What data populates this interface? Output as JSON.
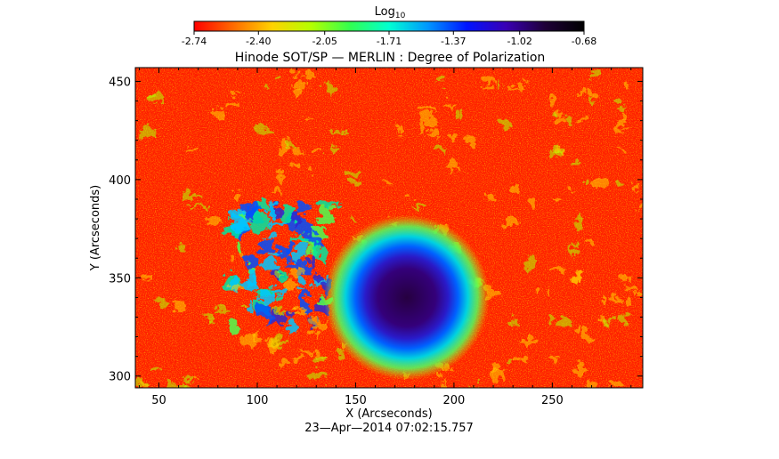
{
  "chart_data": {
    "type": "heatmap",
    "title": "Hinode SOT/SP — MERLIN : Degree of Polarization",
    "xlabel": "X (Arcseconds)",
    "ylabel": "Y (Arcseconds)",
    "footer": "23—Apr—2014 07:02:15.757",
    "xlim": [
      38,
      296
    ],
    "ylim": [
      294,
      457
    ],
    "x_ticks": [
      50,
      100,
      150,
      200,
      250
    ],
    "y_ticks": [
      300,
      350,
      400,
      450
    ],
    "colorbar": {
      "label_base": "Log",
      "label_sub": "10",
      "range": [
        -2.74,
        -0.68
      ],
      "ticks": [
        "-2.74",
        "-2.40",
        "-2.05",
        "-1.71",
        "-1.37",
        "-1.02",
        "-0.68"
      ],
      "colors": [
        "#ff0000",
        "#ff6a00",
        "#ffd200",
        "#b4ff00",
        "#32ff50",
        "#00ffd2",
        "#0096ff",
        "#0014ff",
        "#3a00b4",
        "#1e0037",
        "#000000"
      ]
    },
    "features": [
      {
        "name": "sunspot",
        "x": 176,
        "y": 340,
        "r_umbra": 10,
        "r_penumbra": 20
      },
      {
        "name": "plage",
        "x_range": [
          85,
          135
        ],
        "y_range": [
          325,
          390
        ]
      }
    ]
  }
}
